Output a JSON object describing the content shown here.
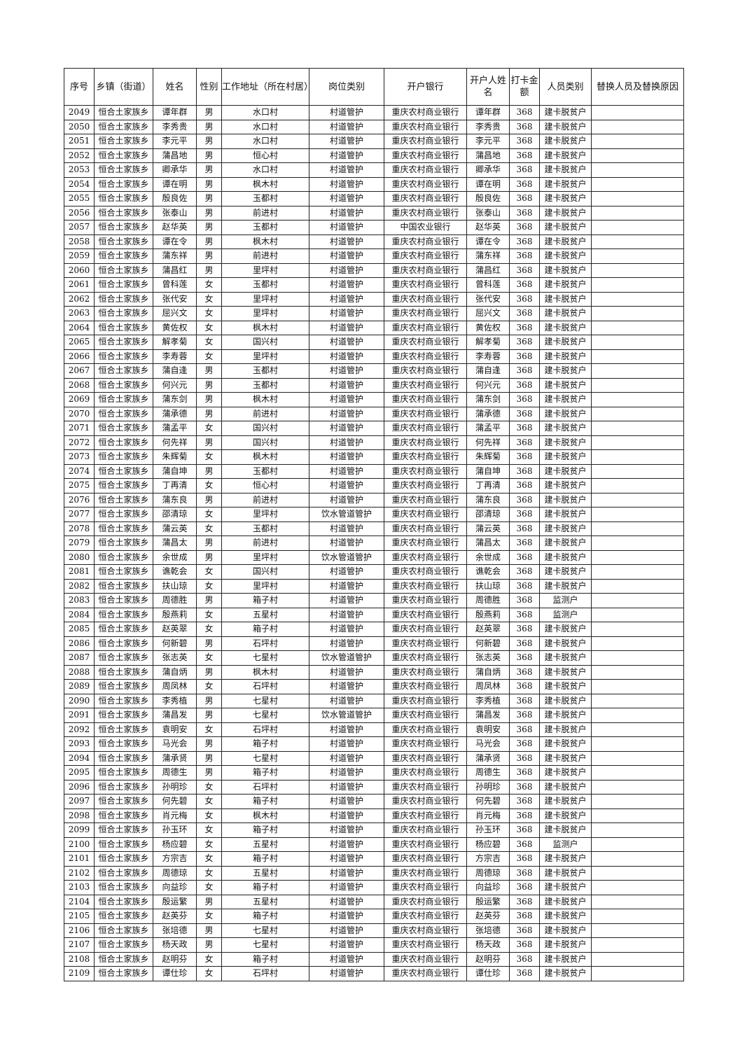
{
  "headers": [
    "序号",
    "乡镇（街道）",
    "姓名",
    "性别",
    "工作地址（所在村居）",
    "岗位类别",
    "开户银行",
    "开户人姓名",
    "打卡金额",
    "人员类别",
    "替换人员及替换原因"
  ],
  "rows": [
    [
      "2049",
      "恒合土家族乡",
      "谭年群",
      "男",
      "水口村",
      "村道管护",
      "重庆农村商业银行",
      "谭年群",
      "368",
      "建卡脱贫户",
      ""
    ],
    [
      "2050",
      "恒合土家族乡",
      "李秀贵",
      "男",
      "水口村",
      "村道管护",
      "重庆农村商业银行",
      "李秀贵",
      "368",
      "建卡脱贫户",
      ""
    ],
    [
      "2051",
      "恒合土家族乡",
      "李元平",
      "男",
      "水口村",
      "村道管护",
      "重庆农村商业银行",
      "李元平",
      "368",
      "建卡脱贫户",
      ""
    ],
    [
      "2052",
      "恒合土家族乡",
      "蒲昌地",
      "男",
      "恒心村",
      "村道管护",
      "重庆农村商业银行",
      "蒲昌地",
      "368",
      "建卡脱贫户",
      ""
    ],
    [
      "2053",
      "恒合土家族乡",
      "卿承华",
      "男",
      "水口村",
      "村道管护",
      "重庆农村商业银行",
      "卿承华",
      "368",
      "建卡脱贫户",
      ""
    ],
    [
      "2054",
      "恒合土家族乡",
      "谭在明",
      "男",
      "枫木村",
      "村道管护",
      "重庆农村商业银行",
      "谭在明",
      "368",
      "建卡脱贫户",
      ""
    ],
    [
      "2055",
      "恒合土家族乡",
      "殷良佐",
      "男",
      "玉都村",
      "村道管护",
      "重庆农村商业银行",
      "殷良佐",
      "368",
      "建卡脱贫户",
      ""
    ],
    [
      "2056",
      "恒合土家族乡",
      "张泰山",
      "男",
      "前进村",
      "村道管护",
      "重庆农村商业银行",
      "张泰山",
      "368",
      "建卡脱贫户",
      ""
    ],
    [
      "2057",
      "恒合土家族乡",
      "赵华英",
      "男",
      "玉都村",
      "村道管护",
      "中国农业银行",
      "赵华英",
      "368",
      "建卡脱贫户",
      ""
    ],
    [
      "2058",
      "恒合土家族乡",
      "谭在令",
      "男",
      "枫木村",
      "村道管护",
      "重庆农村商业银行",
      "谭在令",
      "368",
      "建卡脱贫户",
      ""
    ],
    [
      "2059",
      "恒合土家族乡",
      "蒲东祥",
      "男",
      "前进村",
      "村道管护",
      "重庆农村商业银行",
      "蒲东祥",
      "368",
      "建卡脱贫户",
      ""
    ],
    [
      "2060",
      "恒合土家族乡",
      "蒲昌红",
      "男",
      "里坪村",
      "村道管护",
      "重庆农村商业银行",
      "蒲昌红",
      "368",
      "建卡脱贫户",
      ""
    ],
    [
      "2061",
      "恒合土家族乡",
      "曾科莲",
      "女",
      "玉都村",
      "村道管护",
      "重庆农村商业银行",
      "曾科莲",
      "368",
      "建卡脱贫户",
      ""
    ],
    [
      "2062",
      "恒合土家族乡",
      "张代安",
      "女",
      "里坪村",
      "村道管护",
      "重庆农村商业银行",
      "张代安",
      "368",
      "建卡脱贫户",
      ""
    ],
    [
      "2063",
      "恒合土家族乡",
      "屈兴文",
      "女",
      "里坪村",
      "村道管护",
      "重庆农村商业银行",
      "屈兴文",
      "368",
      "建卡脱贫户",
      ""
    ],
    [
      "2064",
      "恒合土家族乡",
      "黄佐权",
      "女",
      "枫木村",
      "村道管护",
      "重庆农村商业银行",
      "黄佐权",
      "368",
      "建卡脱贫户",
      ""
    ],
    [
      "2065",
      "恒合土家族乡",
      "解孝菊",
      "女",
      "国兴村",
      "村道管护",
      "重庆农村商业银行",
      "解孝菊",
      "368",
      "建卡脱贫户",
      ""
    ],
    [
      "2066",
      "恒合土家族乡",
      "李寿蓉",
      "女",
      "里坪村",
      "村道管护",
      "重庆农村商业银行",
      "李寿蓉",
      "368",
      "建卡脱贫户",
      ""
    ],
    [
      "2067",
      "恒合土家族乡",
      "蒲自逢",
      "男",
      "玉都村",
      "村道管护",
      "重庆农村商业银行",
      "蒲自逢",
      "368",
      "建卡脱贫户",
      ""
    ],
    [
      "2068",
      "恒合土家族乡",
      "何兴元",
      "男",
      "玉都村",
      "村道管护",
      "重庆农村商业银行",
      "何兴元",
      "368",
      "建卡脱贫户",
      ""
    ],
    [
      "2069",
      "恒合土家族乡",
      "蒲东剑",
      "男",
      "枫木村",
      "村道管护",
      "重庆农村商业银行",
      "蒲东剑",
      "368",
      "建卡脱贫户",
      ""
    ],
    [
      "2070",
      "恒合土家族乡",
      "蒲承德",
      "男",
      "前进村",
      "村道管护",
      "重庆农村商业银行",
      "蒲承德",
      "368",
      "建卡脱贫户",
      ""
    ],
    [
      "2071",
      "恒合土家族乡",
      "蒲孟平",
      "女",
      "国兴村",
      "村道管护",
      "重庆农村商业银行",
      "蒲孟平",
      "368",
      "建卡脱贫户",
      ""
    ],
    [
      "2072",
      "恒合土家族乡",
      "何先祥",
      "男",
      "国兴村",
      "村道管护",
      "重庆农村商业银行",
      "何先祥",
      "368",
      "建卡脱贫户",
      ""
    ],
    [
      "2073",
      "恒合土家族乡",
      "朱辉菊",
      "女",
      "枫木村",
      "村道管护",
      "重庆农村商业银行",
      "朱辉菊",
      "368",
      "建卡脱贫户",
      ""
    ],
    [
      "2074",
      "恒合土家族乡",
      "蒲自坤",
      "男",
      "玉都村",
      "村道管护",
      "重庆农村商业银行",
      "蒲自坤",
      "368",
      "建卡脱贫户",
      ""
    ],
    [
      "2075",
      "恒合土家族乡",
      "丁再清",
      "女",
      "恒心村",
      "村道管护",
      "重庆农村商业银行",
      "丁再清",
      "368",
      "建卡脱贫户",
      ""
    ],
    [
      "2076",
      "恒合土家族乡",
      "蒲东良",
      "男",
      "前进村",
      "村道管护",
      "重庆农村商业银行",
      "蒲东良",
      "368",
      "建卡脱贫户",
      ""
    ],
    [
      "2077",
      "恒合土家族乡",
      "邵清琼",
      "女",
      "里坪村",
      "饮水管道管护",
      "重庆农村商业银行",
      "邵清琼",
      "368",
      "建卡脱贫户",
      ""
    ],
    [
      "2078",
      "恒合土家族乡",
      "蒲云英",
      "女",
      "玉都村",
      "村道管护",
      "重庆农村商业银行",
      "蒲云英",
      "368",
      "建卡脱贫户",
      ""
    ],
    [
      "2079",
      "恒合土家族乡",
      "蒲昌太",
      "男",
      "前进村",
      "村道管护",
      "重庆农村商业银行",
      "蒲昌太",
      "368",
      "建卡脱贫户",
      ""
    ],
    [
      "2080",
      "恒合土家族乡",
      "余世成",
      "男",
      "里坪村",
      "饮水管道管护",
      "重庆农村商业银行",
      "余世成",
      "368",
      "建卡脱贫户",
      ""
    ],
    [
      "2081",
      "恒合土家族乡",
      "谯乾会",
      "女",
      "国兴村",
      "村道管护",
      "重庆农村商业银行",
      "谯乾会",
      "368",
      "建卡脱贫户",
      ""
    ],
    [
      "2082",
      "恒合土家族乡",
      "扶山琼",
      "女",
      "里坪村",
      "村道管护",
      "重庆农村商业银行",
      "扶山琼",
      "368",
      "建卡脱贫户",
      ""
    ],
    [
      "2083",
      "恒合土家族乡",
      "周德胜",
      "男",
      "箱子村",
      "村道管护",
      "重庆农村商业银行",
      "周德胜",
      "368",
      "监测户",
      ""
    ],
    [
      "2084",
      "恒合土家族乡",
      "殷燕莉",
      "女",
      "五星村",
      "村道管护",
      "重庆农村商业银行",
      "殷燕莉",
      "368",
      "监测户",
      ""
    ],
    [
      "2085",
      "恒合土家族乡",
      "赵英翠",
      "女",
      "箱子村",
      "村道管护",
      "重庆农村商业银行",
      "赵英翠",
      "368",
      "建卡脱贫户",
      ""
    ],
    [
      "2086",
      "恒合土家族乡",
      "何新碧",
      "男",
      "石坪村",
      "村道管护",
      "重庆农村商业银行",
      "何新碧",
      "368",
      "建卡脱贫户",
      ""
    ],
    [
      "2087",
      "恒合土家族乡",
      "张志英",
      "女",
      "七星村",
      "饮水管道管护",
      "重庆农村商业银行",
      "张志英",
      "368",
      "建卡脱贫户",
      ""
    ],
    [
      "2088",
      "恒合土家族乡",
      "蒲自炳",
      "男",
      "枫木村",
      "村道管护",
      "重庆农村商业银行",
      "蒲自炳",
      "368",
      "建卡脱贫户",
      ""
    ],
    [
      "2089",
      "恒合土家族乡",
      "周凤林",
      "女",
      "石坪村",
      "村道管护",
      "重庆农村商业银行",
      "周凤林",
      "368",
      "建卡脱贫户",
      ""
    ],
    [
      "2090",
      "恒合土家族乡",
      "李秀植",
      "男",
      "七星村",
      "村道管护",
      "重庆农村商业银行",
      "李秀植",
      "368",
      "建卡脱贫户",
      ""
    ],
    [
      "2091",
      "恒合土家族乡",
      "蒲昌发",
      "男",
      "七星村",
      "饮水管道管护",
      "重庆农村商业银行",
      "蒲昌发",
      "368",
      "建卡脱贫户",
      ""
    ],
    [
      "2092",
      "恒合土家族乡",
      "袁明安",
      "女",
      "石坪村",
      "村道管护",
      "重庆农村商业银行",
      "袁明安",
      "368",
      "建卡脱贫户",
      ""
    ],
    [
      "2093",
      "恒合土家族乡",
      "马光会",
      "男",
      "箱子村",
      "村道管护",
      "重庆农村商业银行",
      "马光会",
      "368",
      "建卡脱贫户",
      ""
    ],
    [
      "2094",
      "恒合土家族乡",
      "蒲承贤",
      "男",
      "七星村",
      "村道管护",
      "重庆农村商业银行",
      "蒲承贤",
      "368",
      "建卡脱贫户",
      ""
    ],
    [
      "2095",
      "恒合土家族乡",
      "周德生",
      "男",
      "箱子村",
      "村道管护",
      "重庆农村商业银行",
      "周德生",
      "368",
      "建卡脱贫户",
      ""
    ],
    [
      "2096",
      "恒合土家族乡",
      "孙明珍",
      "女",
      "石坪村",
      "村道管护",
      "重庆农村商业银行",
      "孙明珍",
      "368",
      "建卡脱贫户",
      ""
    ],
    [
      "2097",
      "恒合土家族乡",
      "何先碧",
      "女",
      "箱子村",
      "村道管护",
      "重庆农村商业银行",
      "何先碧",
      "368",
      "建卡脱贫户",
      ""
    ],
    [
      "2098",
      "恒合土家族乡",
      "肖元梅",
      "女",
      "枫木村",
      "村道管护",
      "重庆农村商业银行",
      "肖元梅",
      "368",
      "建卡脱贫户",
      ""
    ],
    [
      "2099",
      "恒合土家族乡",
      "孙玉环",
      "女",
      "箱子村",
      "村道管护",
      "重庆农村商业银行",
      "孙玉环",
      "368",
      "建卡脱贫户",
      ""
    ],
    [
      "2100",
      "恒合土家族乡",
      "杨应碧",
      "女",
      "五星村",
      "村道管护",
      "重庆农村商业银行",
      "杨应碧",
      "368",
      "监测户",
      ""
    ],
    [
      "2101",
      "恒合土家族乡",
      "方宗吉",
      "女",
      "箱子村",
      "村道管护",
      "重庆农村商业银行",
      "方宗吉",
      "368",
      "建卡脱贫户",
      ""
    ],
    [
      "2102",
      "恒合土家族乡",
      "周德琼",
      "女",
      "五星村",
      "村道管护",
      "重庆农村商业银行",
      "周德琼",
      "368",
      "建卡脱贫户",
      ""
    ],
    [
      "2103",
      "恒合土家族乡",
      "向益珍",
      "女",
      "箱子村",
      "村道管护",
      "重庆农村商业银行",
      "向益珍",
      "368",
      "建卡脱贫户",
      ""
    ],
    [
      "2104",
      "恒合土家族乡",
      "殷运繁",
      "男",
      "五星村",
      "村道管护",
      "重庆农村商业银行",
      "殷运繁",
      "368",
      "建卡脱贫户",
      ""
    ],
    [
      "2105",
      "恒合土家族乡",
      "赵英芬",
      "女",
      "箱子村",
      "村道管护",
      "重庆农村商业银行",
      "赵英芬",
      "368",
      "建卡脱贫户",
      ""
    ],
    [
      "2106",
      "恒合土家族乡",
      "张培德",
      "男",
      "七星村",
      "村道管护",
      "重庆农村商业银行",
      "张培德",
      "368",
      "建卡脱贫户",
      ""
    ],
    [
      "2107",
      "恒合土家族乡",
      "杨天政",
      "男",
      "七星村",
      "村道管护",
      "重庆农村商业银行",
      "杨天政",
      "368",
      "建卡脱贫户",
      ""
    ],
    [
      "2108",
      "恒合土家族乡",
      "赵明芬",
      "女",
      "箱子村",
      "村道管护",
      "重庆农村商业银行",
      "赵明芬",
      "368",
      "建卡脱贫户",
      ""
    ],
    [
      "2109",
      "恒合土家族乡",
      "谭仕珍",
      "女",
      "石坪村",
      "村道管护",
      "重庆农村商业银行",
      "谭仕珍",
      "368",
      "建卡脱贫户",
      ""
    ]
  ]
}
